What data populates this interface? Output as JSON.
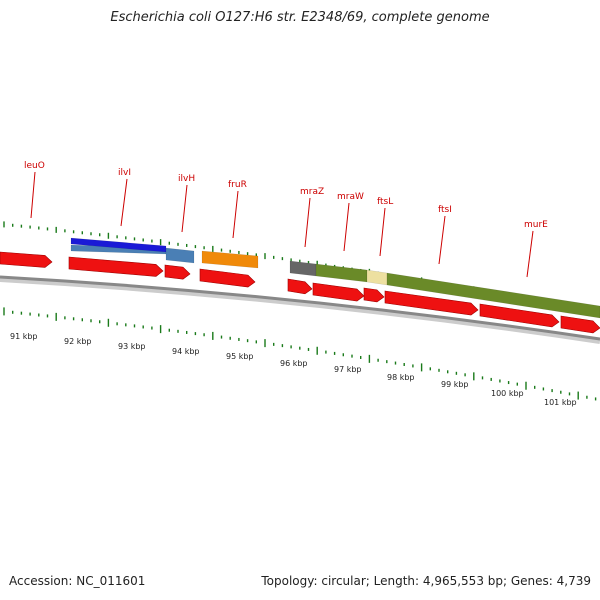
{
  "title": "Escherichia coli O127:H6 str. E2348/69, complete genome",
  "footer": {
    "accession": "Accession: NC_011601",
    "topology": "Topology: circular; Length: 4,965,553 bp; Genes: 4,739"
  },
  "colors": {
    "backbone": "#888888",
    "cds": "#ee1111",
    "tick": "#1a7a1a",
    "label": "#cc0000",
    "ilvI": "#1a1ad6",
    "ilvI_under": "#4a7fb5",
    "ilvH": "#4a7fb5",
    "fruR": "#f08a0a",
    "mraZ": "#666666",
    "olive": "#6a8a28",
    "ftsL": "#ede0a0"
  },
  "gene_labels": [
    {
      "name": "leuO"
    },
    {
      "name": "ilvI"
    },
    {
      "name": "ilvH"
    },
    {
      "name": "fruR"
    },
    {
      "name": "mraZ"
    },
    {
      "name": "mraW"
    },
    {
      "name": "ftsL"
    },
    {
      "name": "ftsI"
    },
    {
      "name": "murE"
    }
  ],
  "kbp_labels": [
    "91 kbp",
    "92 kbp",
    "93 kbp",
    "94 kbp",
    "95 kbp",
    "96 kbp",
    "97 kbp",
    "98 kbp",
    "99 kbp",
    "100 kbp",
    "101 kbp"
  ]
}
